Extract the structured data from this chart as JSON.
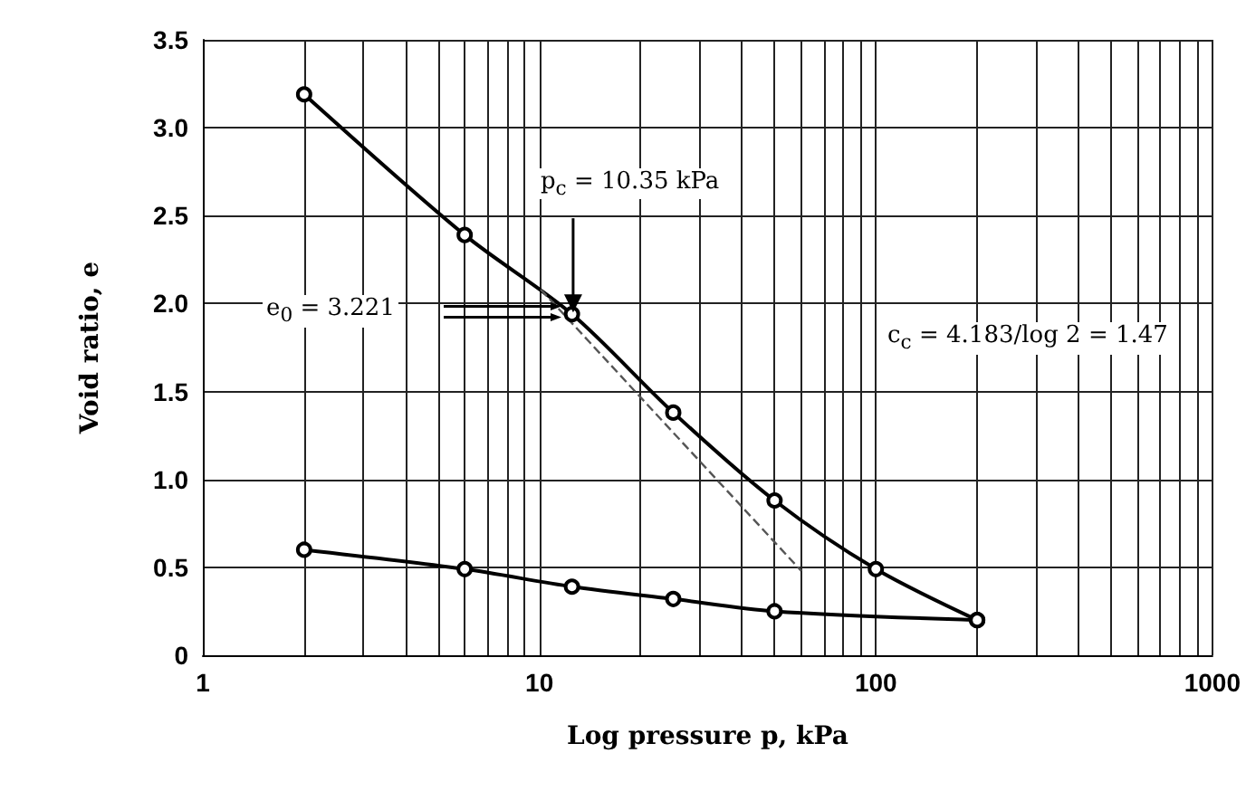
{
  "chart_data": {
    "type": "line",
    "xlabel": "Log pressure p, kPa",
    "ylabel": "Void ratio, e",
    "log": "x",
    "grid": true,
    "xlim": [
      1,
      1000
    ],
    "xticks": [
      1,
      10,
      100,
      1000
    ],
    "ylim": [
      0,
      3.5
    ],
    "yticks": [
      {
        "value": 0,
        "label": "0"
      },
      0.5,
      {
        "value": 1,
        "label": "1.0"
      },
      1.5,
      {
        "value": 2,
        "label": "2.0"
      },
      2.5,
      {
        "value": 3,
        "label": "3.0"
      },
      3.5
    ],
    "series": [
      {
        "color": "#000000",
        "marker": "circle",
        "line_style": "solid",
        "x": [
          2,
          6,
          12.5,
          25,
          50,
          100,
          200
        ],
        "values": [
          3.19,
          2.39,
          1.94,
          1.38,
          0.88,
          0.49,
          0.2
        ]
      },
      {
        "color": "#000000",
        "marker": "circle",
        "line_style": "solid",
        "x": [
          200,
          50,
          25,
          12.5,
          6,
          2
        ],
        "values": [
          0.2,
          0.25,
          0.32,
          0.39,
          0.49,
          0.6
        ]
      },
      {
        "color": "#555555",
        "marker": "none",
        "line_style": "dashed",
        "x": [
          10.1,
          60
        ],
        "values": [
          2.08,
          0.48
        ]
      }
    ],
    "annotations": [
      {
        "text": "p$_{c}$ = 10.35 kPa",
        "x": 12.6,
        "y": 1.95
      },
      "e$_{0}$ = 3.221",
      "c$_{c}$ = 4.183/log 2 = 1.47"
    ]
  }
}
